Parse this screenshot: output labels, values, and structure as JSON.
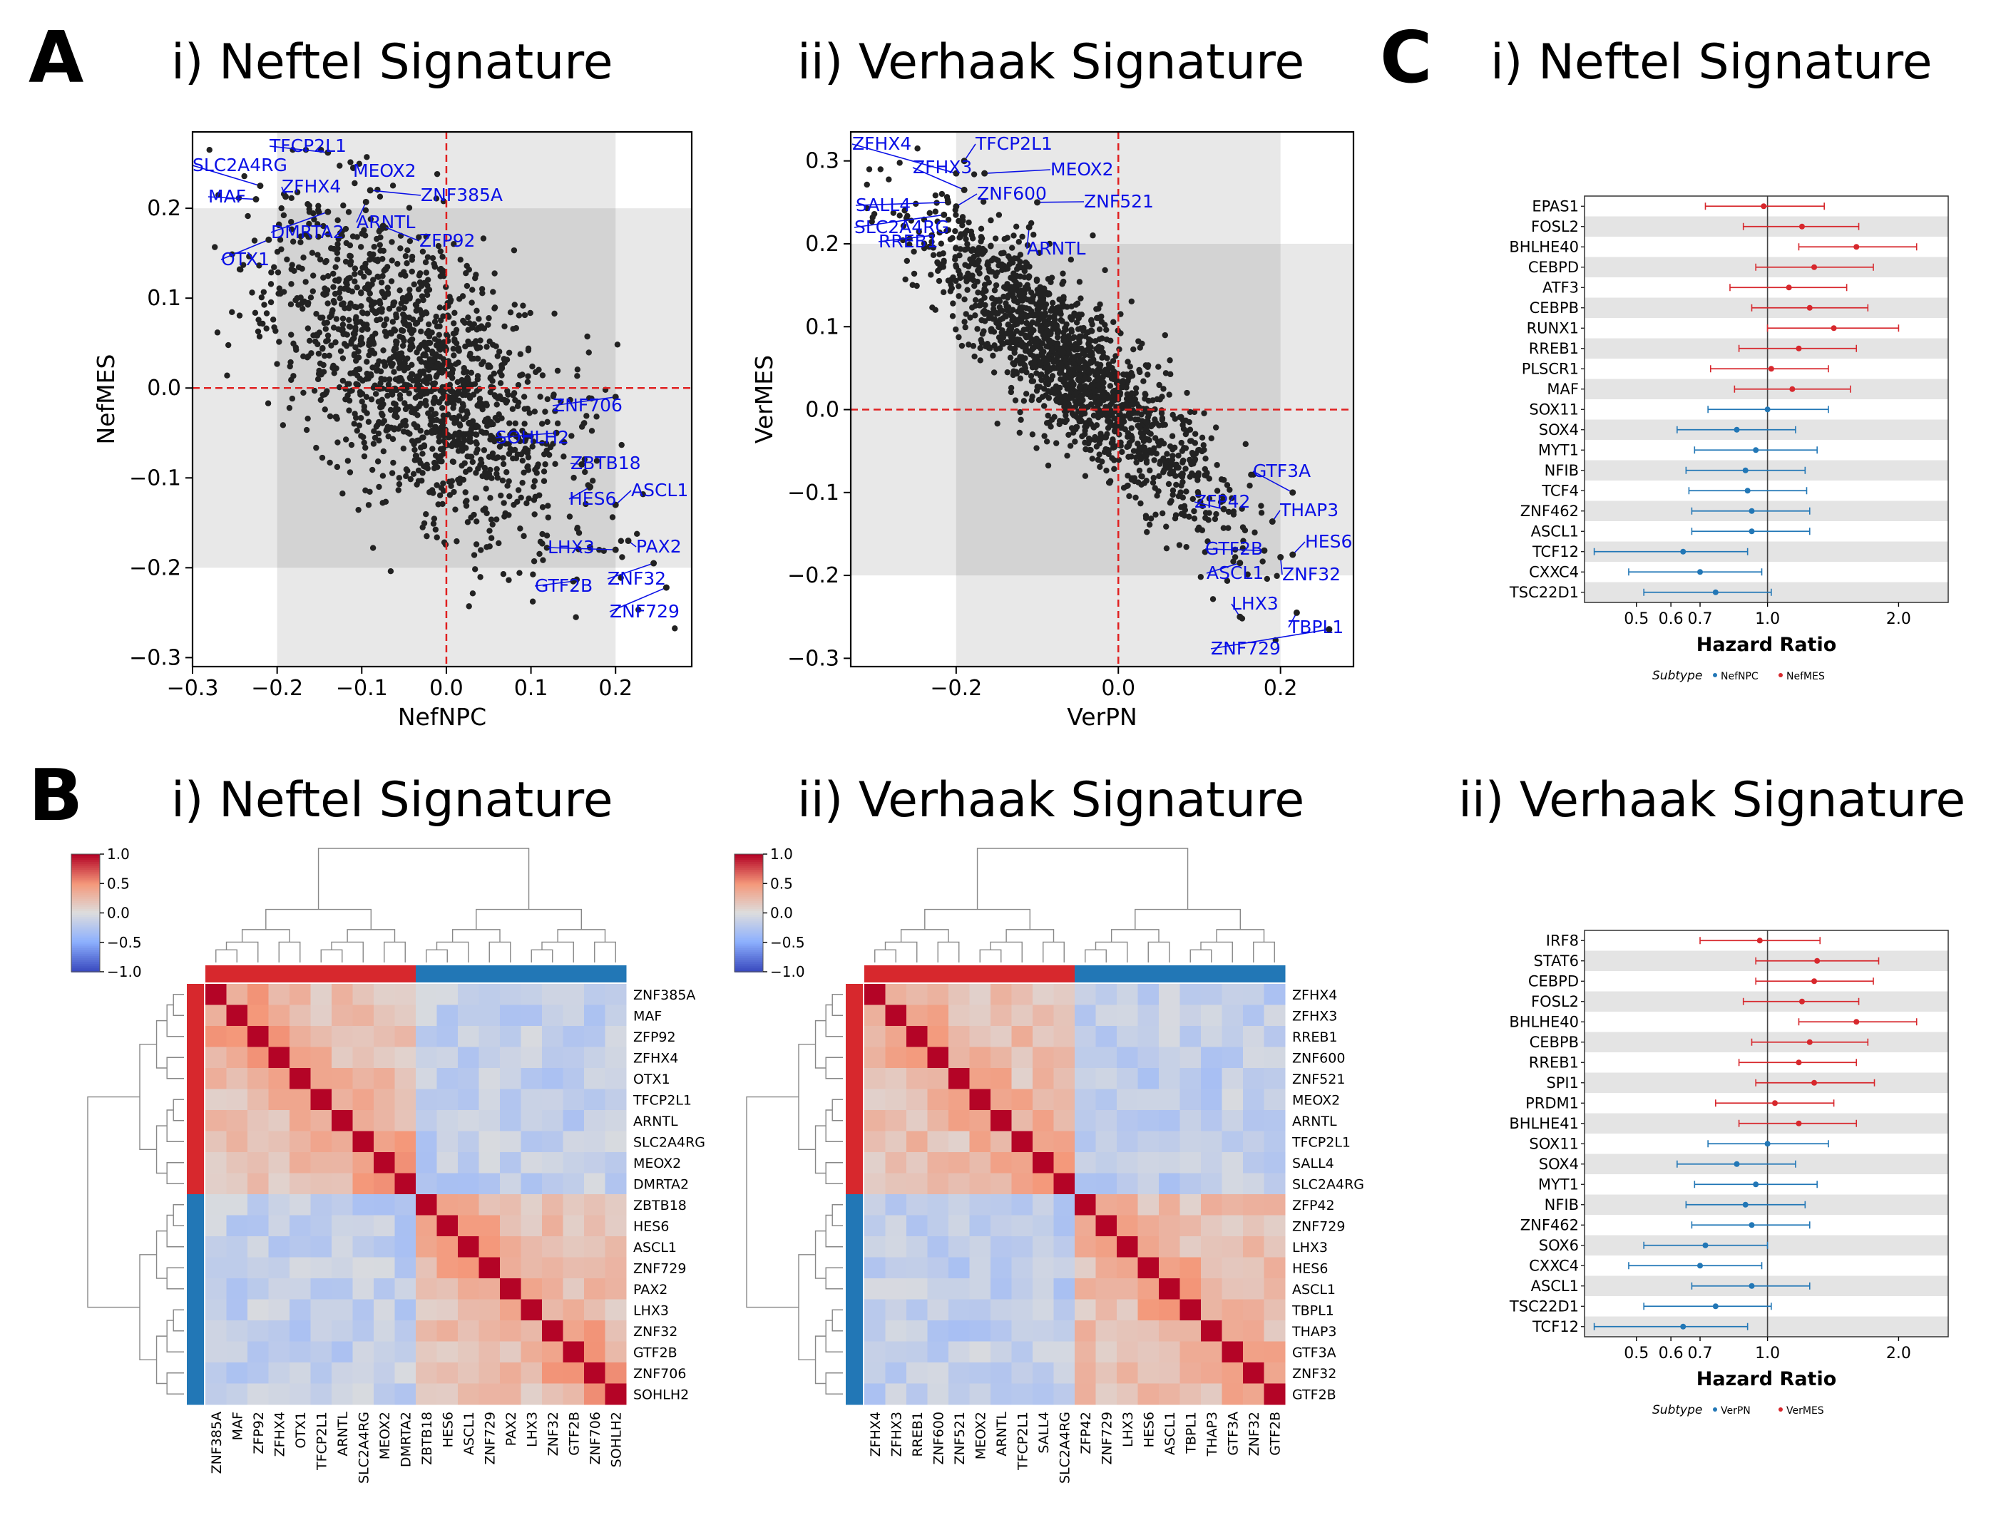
{
  "panels": {
    "A": {
      "letter": "A",
      "sub_i": "i) Neftel Signature",
      "sub_ii": "ii) Verhaak Signature"
    },
    "B": {
      "letter": "B",
      "sub_i": "i) Neftel Signature",
      "sub_ii": "ii) Verhaak Signature"
    },
    "C": {
      "letter": "C",
      "sub_i": "i) Neftel Signature",
      "sub_ii": "ii) Verhaak Signature"
    }
  },
  "colors": {
    "red": "#d7282d",
    "blue": "#2277b6",
    "label": "#0a10e6",
    "dot": "#222222"
  },
  "chart_data": [
    {
      "id": "A-i",
      "type": "scatter",
      "xlabel": "NefNPC",
      "ylabel": "NefMES",
      "xlim": [
        -0.3,
        0.29
      ],
      "ylim": [
        -0.31,
        0.285
      ],
      "xticks": [
        -0.3,
        -0.2,
        -0.1,
        0.0,
        0.1,
        0.2
      ],
      "yticks": [
        -0.3,
        -0.2,
        -0.1,
        0.0,
        0.1,
        0.2
      ],
      "xtick_labels": [
        "−0.3",
        "−0.2",
        "−0.1",
        "0.0",
        "0.1",
        "0.2"
      ],
      "ytick_labels": [
        "−0.3",
        "−0.2",
        "−0.1",
        "0.0",
        "0.1",
        "0.2"
      ],
      "point_cloud": {
        "n": 1500,
        "x_mean": -0.03,
        "x_sd": 0.085,
        "slope": -0.55,
        "resid_sd": 0.075
      },
      "labels": [
        {
          "text": "TFCP2L1",
          "x": -0.14,
          "y": 0.262
        },
        {
          "text": "SLC2A4RG",
          "x": -0.22,
          "y": 0.225
        },
        {
          "text": "MEOX2",
          "x": -0.11,
          "y": 0.245
        },
        {
          "text": "MAF",
          "x": -0.225,
          "y": 0.21
        },
        {
          "text": "ZFHX4",
          "x": -0.19,
          "y": 0.213
        },
        {
          "text": "ZNF385A",
          "x": -0.09,
          "y": 0.22
        },
        {
          "text": "ARNTL",
          "x": -0.095,
          "y": 0.207
        },
        {
          "text": "DMRTA2",
          "x": -0.14,
          "y": 0.196
        },
        {
          "text": "ZFP92",
          "x": -0.075,
          "y": 0.18
        },
        {
          "text": "OTX1",
          "x": -0.21,
          "y": 0.165
        },
        {
          "text": "ZNF706",
          "x": 0.2,
          "y": -0.01
        },
        {
          "text": "SOHLH2",
          "x": 0.13,
          "y": -0.05
        },
        {
          "text": "ZBTB18",
          "x": 0.16,
          "y": -0.085
        },
        {
          "text": "ASCL1",
          "x": 0.2,
          "y": -0.13
        },
        {
          "text": "HES6",
          "x": 0.17,
          "y": -0.11
        },
        {
          "text": "PAX2",
          "x": 0.215,
          "y": -0.17
        },
        {
          "text": "LHX3",
          "x": 0.2,
          "y": -0.18
        },
        {
          "text": "ZNF32",
          "x": 0.245,
          "y": -0.195
        },
        {
          "text": "GTF2B",
          "x": 0.15,
          "y": -0.215
        },
        {
          "text": "ZNF729",
          "x": 0.26,
          "y": -0.222
        }
      ]
    },
    {
      "id": "A-ii",
      "type": "scatter",
      "xlabel": "VerPN",
      "ylabel": "VerMES",
      "xlim": [
        -0.33,
        0.29
      ],
      "ylim": [
        -0.31,
        0.335
      ],
      "xticks": [
        -0.2,
        0.0,
        0.2
      ],
      "yticks": [
        -0.3,
        -0.2,
        -0.1,
        0.0,
        0.1,
        0.2,
        0.3
      ],
      "xtick_labels": [
        "−0.2",
        "0.0",
        "0.2"
      ],
      "ytick_labels": [
        "−0.3",
        "−0.2",
        "−0.1",
        "0.0",
        "0.1",
        "0.2",
        "0.3"
      ],
      "point_cloud": {
        "n": 1600,
        "x_mean": -0.06,
        "x_sd": 0.09,
        "slope": -0.88,
        "resid_sd": 0.045
      },
      "labels": [
        {
          "text": "ZFHX4",
          "x": -0.2,
          "y": 0.285
        },
        {
          "text": "TFCP2L1",
          "x": -0.19,
          "y": 0.3
        },
        {
          "text": "ZFHX3",
          "x": -0.19,
          "y": 0.265
        },
        {
          "text": "MEOX2",
          "x": -0.165,
          "y": 0.285
        },
        {
          "text": "ZNF600",
          "x": -0.2,
          "y": 0.245
        },
        {
          "text": "SALL4",
          "x": -0.21,
          "y": 0.25
        },
        {
          "text": "ZNF521",
          "x": -0.1,
          "y": 0.25
        },
        {
          "text": "SLC2A4RG",
          "x": -0.215,
          "y": 0.235
        },
        {
          "text": "RREB1",
          "x": -0.23,
          "y": 0.21
        },
        {
          "text": "ARNTL",
          "x": -0.11,
          "y": 0.22
        },
        {
          "text": "GTF3A",
          "x": 0.215,
          "y": -0.1
        },
        {
          "text": "ZFP42",
          "x": 0.13,
          "y": -0.12
        },
        {
          "text": "THAP3",
          "x": 0.19,
          "y": -0.135
        },
        {
          "text": "HES6",
          "x": 0.215,
          "y": -0.175
        },
        {
          "text": "GTF2B",
          "x": 0.18,
          "y": -0.17
        },
        {
          "text": "ASCL1",
          "x": 0.15,
          "y": -0.185
        },
        {
          "text": "ZNF32",
          "x": 0.2,
          "y": -0.178
        },
        {
          "text": "LHX3",
          "x": 0.15,
          "y": -0.25
        },
        {
          "text": "TBPL1",
          "x": 0.22,
          "y": -0.245
        },
        {
          "text": "ZNF729",
          "x": 0.26,
          "y": -0.265
        }
      ]
    },
    {
      "id": "B-i",
      "type": "heatmap",
      "genes": [
        "ZNF385A",
        "MAF",
        "ZFP92",
        "ZFHX4",
        "OTX1",
        "TFCP2L1",
        "ARNTL",
        "SLC2A4RG",
        "MEOX2",
        "DMRTA2",
        "ZBTB18",
        "HES6",
        "ASCL1",
        "ZNF729",
        "PAX2",
        "LHX3",
        "ZNF32",
        "GTF2B",
        "ZNF706",
        "SOHLH2"
      ],
      "groups": [
        10,
        10
      ],
      "colorbar_ticks": [
        "1.0",
        "0.5",
        "0.0",
        "−0.5",
        "−1.0"
      ],
      "vmin": -1,
      "vmax": 1
    },
    {
      "id": "B-ii",
      "type": "heatmap",
      "genes": [
        "ZFHX4",
        "ZFHX3",
        "RREB1",
        "ZNF600",
        "ZNF521",
        "MEOX2",
        "ARNTL",
        "TFCP2L1",
        "SALL4",
        "SLC2A4RG",
        "ZFP42",
        "ZNF729",
        "LHX3",
        "HES6",
        "ASCL1",
        "TBPL1",
        "THAP3",
        "GTF3A",
        "ZNF32",
        "GTF2B"
      ],
      "groups": [
        10,
        10
      ],
      "colorbar_ticks": [
        "1.0",
        "0.5",
        "0.0",
        "−0.5",
        "−1.0"
      ],
      "vmin": -1,
      "vmax": 1
    },
    {
      "id": "C-i",
      "type": "forest",
      "xlabel": "Hazard Ratio",
      "xticks": [
        0.5,
        0.6,
        0.7,
        1.0,
        2.0
      ],
      "xtick_labels": [
        "0.5",
        "0.6",
        "0.7",
        "1.0",
        "2.0"
      ],
      "xlim": [
        0.38,
        2.6
      ],
      "legend_title": "Subtype",
      "legend": [
        {
          "name": "NefNPC",
          "color": "#2277b6"
        },
        {
          "name": "NefMES",
          "color": "#d7282d"
        }
      ],
      "rows": [
        {
          "gene": "EPAS1",
          "hr": 0.98,
          "lo": 0.72,
          "hi": 1.35,
          "group": "red"
        },
        {
          "gene": "FOSL2",
          "hr": 1.2,
          "lo": 0.88,
          "hi": 1.62,
          "group": "red"
        },
        {
          "gene": "BHLHE40",
          "hr": 1.6,
          "lo": 1.18,
          "hi": 2.2,
          "group": "red"
        },
        {
          "gene": "CEBPD",
          "hr": 1.28,
          "lo": 0.94,
          "hi": 1.75,
          "group": "red"
        },
        {
          "gene": "ATF3",
          "hr": 1.12,
          "lo": 0.82,
          "hi": 1.52,
          "group": "red"
        },
        {
          "gene": "CEBPB",
          "hr": 1.25,
          "lo": 0.92,
          "hi": 1.7,
          "group": "red"
        },
        {
          "gene": "RUNX1",
          "hr": 1.42,
          "lo": 1.0,
          "hi": 2.0,
          "group": "red"
        },
        {
          "gene": "RREB1",
          "hr": 1.18,
          "lo": 0.86,
          "hi": 1.6,
          "group": "red"
        },
        {
          "gene": "PLSCR1",
          "hr": 1.02,
          "lo": 0.74,
          "hi": 1.38,
          "group": "red"
        },
        {
          "gene": "MAF",
          "hr": 1.14,
          "lo": 0.84,
          "hi": 1.55,
          "group": "red"
        },
        {
          "gene": "SOX11",
          "hr": 1.0,
          "lo": 0.73,
          "hi": 1.38,
          "group": "blue"
        },
        {
          "gene": "SOX4",
          "hr": 0.85,
          "lo": 0.62,
          "hi": 1.16,
          "group": "blue"
        },
        {
          "gene": "MYT1",
          "hr": 0.94,
          "lo": 0.68,
          "hi": 1.3,
          "group": "blue"
        },
        {
          "gene": "NFIB",
          "hr": 0.89,
          "lo": 0.65,
          "hi": 1.22,
          "group": "blue"
        },
        {
          "gene": "TCF4",
          "hr": 0.9,
          "lo": 0.66,
          "hi": 1.23,
          "group": "blue"
        },
        {
          "gene": "ZNF462",
          "hr": 0.92,
          "lo": 0.67,
          "hi": 1.25,
          "group": "blue"
        },
        {
          "gene": "ASCL1",
          "hr": 0.92,
          "lo": 0.67,
          "hi": 1.25,
          "group": "blue"
        },
        {
          "gene": "TCF12",
          "hr": 0.64,
          "lo": 0.4,
          "hi": 0.9,
          "group": "blue"
        },
        {
          "gene": "CXXC4",
          "hr": 0.7,
          "lo": 0.48,
          "hi": 0.97,
          "group": "blue"
        },
        {
          "gene": "TSC22D1",
          "hr": 0.76,
          "lo": 0.52,
          "hi": 1.02,
          "group": "blue"
        }
      ]
    },
    {
      "id": "C-ii",
      "type": "forest",
      "xlabel": "Hazard Ratio",
      "xticks": [
        0.5,
        0.6,
        0.7,
        1.0,
        2.0
      ],
      "xtick_labels": [
        "0.5",
        "0.6",
        "0.7",
        "1.0",
        "2.0"
      ],
      "xlim": [
        0.38,
        2.6
      ],
      "legend_title": "Subtype",
      "legend": [
        {
          "name": "VerPN",
          "color": "#2277b6"
        },
        {
          "name": "VerMES",
          "color": "#d7282d"
        }
      ],
      "rows": [
        {
          "gene": "IRF8",
          "hr": 0.96,
          "lo": 0.7,
          "hi": 1.32,
          "group": "red"
        },
        {
          "gene": "STAT6",
          "hr": 1.3,
          "lo": 0.94,
          "hi": 1.8,
          "group": "red"
        },
        {
          "gene": "CEBPD",
          "hr": 1.28,
          "lo": 0.94,
          "hi": 1.75,
          "group": "red"
        },
        {
          "gene": "FOSL2",
          "hr": 1.2,
          "lo": 0.88,
          "hi": 1.62,
          "group": "red"
        },
        {
          "gene": "BHLHE40",
          "hr": 1.6,
          "lo": 1.18,
          "hi": 2.2,
          "group": "red"
        },
        {
          "gene": "CEBPB",
          "hr": 1.25,
          "lo": 0.92,
          "hi": 1.7,
          "group": "red"
        },
        {
          "gene": "RREB1",
          "hr": 1.18,
          "lo": 0.86,
          "hi": 1.6,
          "group": "red"
        },
        {
          "gene": "SPI1",
          "hr": 1.28,
          "lo": 0.94,
          "hi": 1.76,
          "group": "red"
        },
        {
          "gene": "PRDM1",
          "hr": 1.04,
          "lo": 0.76,
          "hi": 1.42,
          "group": "red"
        },
        {
          "gene": "BHLHE41",
          "hr": 1.18,
          "lo": 0.86,
          "hi": 1.6,
          "group": "red"
        },
        {
          "gene": "SOX11",
          "hr": 1.0,
          "lo": 0.73,
          "hi": 1.38,
          "group": "blue"
        },
        {
          "gene": "SOX4",
          "hr": 0.85,
          "lo": 0.62,
          "hi": 1.16,
          "group": "blue"
        },
        {
          "gene": "MYT1",
          "hr": 0.94,
          "lo": 0.68,
          "hi": 1.3,
          "group": "blue"
        },
        {
          "gene": "NFIB",
          "hr": 0.89,
          "lo": 0.65,
          "hi": 1.22,
          "group": "blue"
        },
        {
          "gene": "ZNF462",
          "hr": 0.92,
          "lo": 0.67,
          "hi": 1.25,
          "group": "blue"
        },
        {
          "gene": "SOX6",
          "hr": 0.72,
          "lo": 0.52,
          "hi": 1.0,
          "group": "blue"
        },
        {
          "gene": "CXXC4",
          "hr": 0.7,
          "lo": 0.48,
          "hi": 0.97,
          "group": "blue"
        },
        {
          "gene": "ASCL1",
          "hr": 0.92,
          "lo": 0.67,
          "hi": 1.25,
          "group": "blue"
        },
        {
          "gene": "TSC22D1",
          "hr": 0.76,
          "lo": 0.52,
          "hi": 1.02,
          "group": "blue"
        },
        {
          "gene": "TCF12",
          "hr": 0.64,
          "lo": 0.4,
          "hi": 0.9,
          "group": "blue"
        }
      ]
    }
  ]
}
